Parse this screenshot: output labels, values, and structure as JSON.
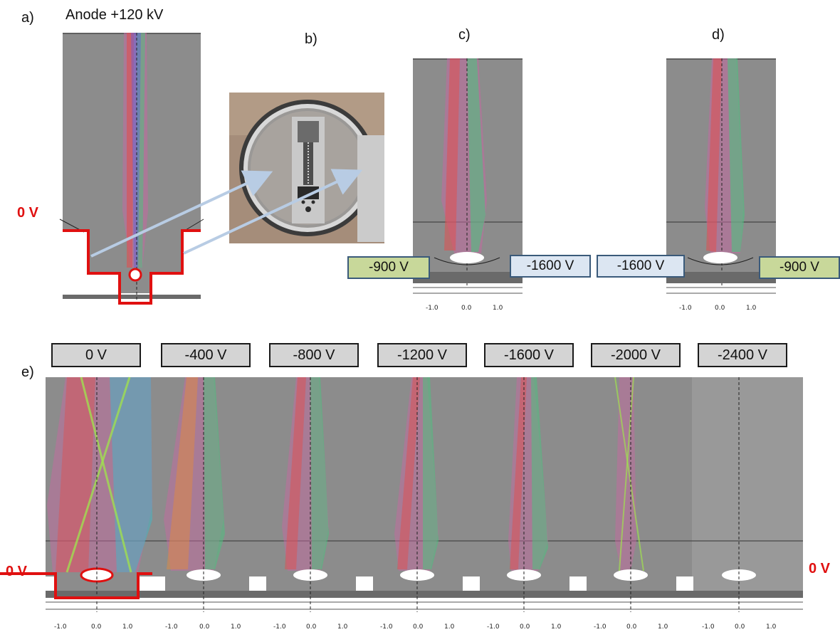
{
  "panel_a": {
    "letter": "a)",
    "anode_label": "Anode +120 kV",
    "ground_label": "0 V"
  },
  "panel_b": {
    "letter": "b)"
  },
  "panel_c": {
    "letter": "c)",
    "left_voltage": "-900 V",
    "right_voltage": "-1600 V",
    "ticks": [
      "-1.0",
      "0.0",
      "1.0"
    ]
  },
  "panel_d": {
    "letter": "d)",
    "left_voltage": "-1600 V",
    "right_voltage": "-900 V",
    "ticks": [
      "-1.0",
      "0.0",
      "1.0"
    ]
  },
  "panel_e": {
    "letter": "e)",
    "ground_left": "0 V",
    "ground_right": "0 V",
    "voltages": [
      "0 V",
      "-400 V",
      "-800 V",
      "-1200 V",
      "-1600 V",
      "-2000 V",
      "-2400 V"
    ],
    "ticks": [
      "-1.0",
      "0.0",
      "1.0"
    ]
  },
  "colors": {
    "background_panel": "#8c8c8c",
    "boundary_red": "#e01010",
    "green_box": "#c8d89a",
    "blue_box": "#dce6f2"
  }
}
